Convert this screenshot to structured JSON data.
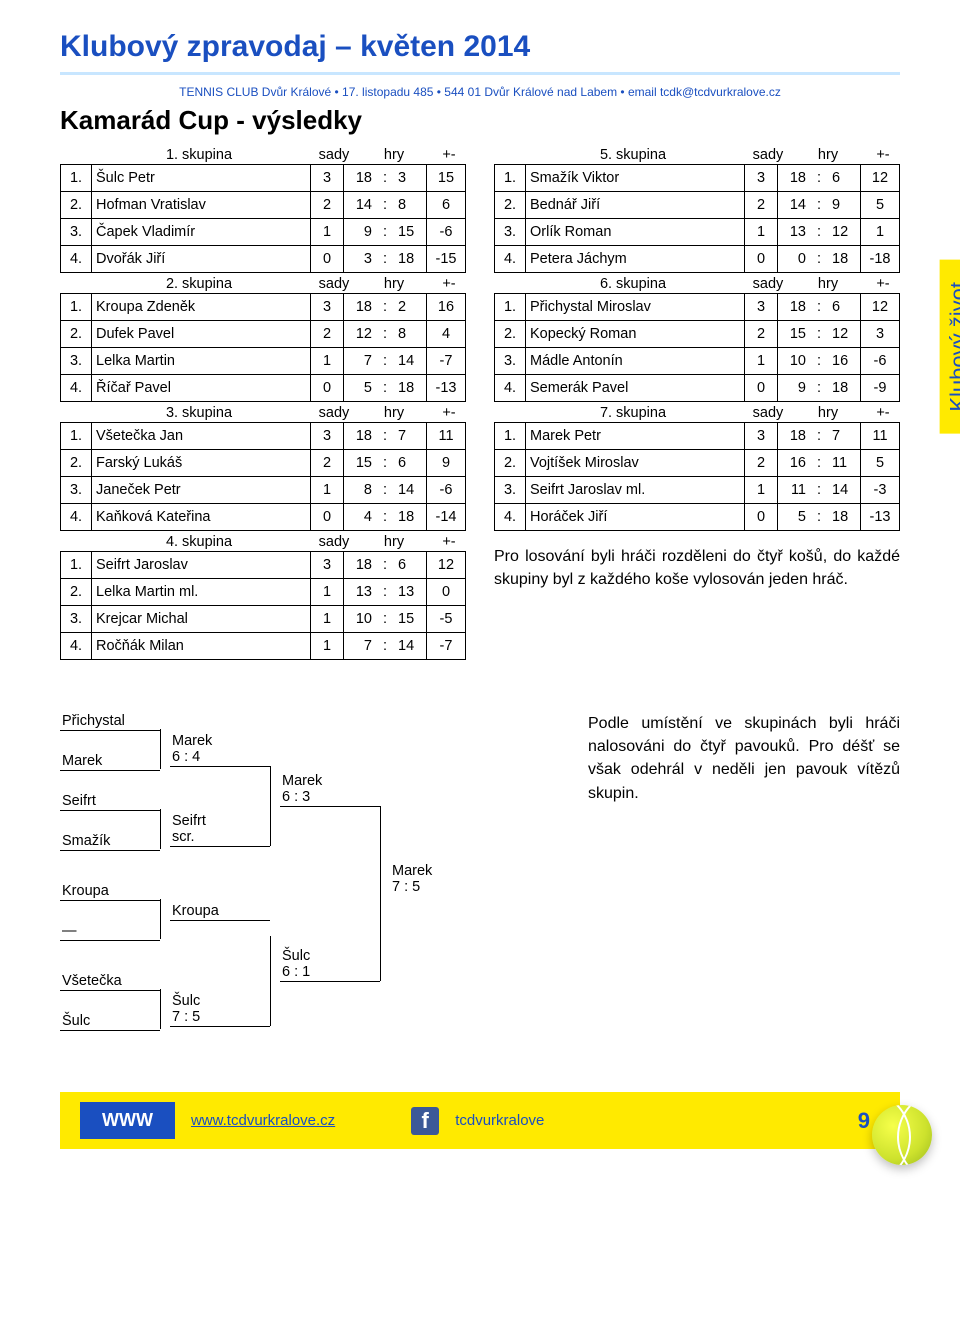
{
  "header": {
    "title": "Klubový zpravodaj – květen 2014",
    "subhead": "TENNIS CLUB Dvůr Králové • 17. listopadu 485 • 544 01 Dvůr Králové nad Labem • email tcdk@tcdvurkralove.cz"
  },
  "section_title": "Kamarád Cup - výsledky",
  "side_label": "Klubový život",
  "col_header": {
    "sady": "sady",
    "hry": "hry",
    "pm": "+-"
  },
  "groups_left": [
    {
      "name": "1. skupina",
      "rows": [
        {
          "pos": "1.",
          "name": "Šulc Petr",
          "sady": "3",
          "h1": "18",
          "h2": "3",
          "pm": "15"
        },
        {
          "pos": "2.",
          "name": "Hofman Vratislav",
          "sady": "2",
          "h1": "14",
          "h2": "8",
          "pm": "6"
        },
        {
          "pos": "3.",
          "name": "Čapek Vladimír",
          "sady": "1",
          "h1": "9",
          "h2": "15",
          "pm": "-6"
        },
        {
          "pos": "4.",
          "name": "Dvořák Jiří",
          "sady": "0",
          "h1": "3",
          "h2": "18",
          "pm": "-15"
        }
      ]
    },
    {
      "name": "2. skupina",
      "rows": [
        {
          "pos": "1.",
          "name": "Kroupa Zdeněk",
          "sady": "3",
          "h1": "18",
          "h2": "2",
          "pm": "16"
        },
        {
          "pos": "2.",
          "name": "Dufek Pavel",
          "sady": "2",
          "h1": "12",
          "h2": "8",
          "pm": "4"
        },
        {
          "pos": "3.",
          "name": "Lelka Martin",
          "sady": "1",
          "h1": "7",
          "h2": "14",
          "pm": "-7"
        },
        {
          "pos": "4.",
          "name": "Říčař Pavel",
          "sady": "0",
          "h1": "5",
          "h2": "18",
          "pm": "-13"
        }
      ]
    },
    {
      "name": "3. skupina",
      "rows": [
        {
          "pos": "1.",
          "name": "Všetečka Jan",
          "sady": "3",
          "h1": "18",
          "h2": "7",
          "pm": "11"
        },
        {
          "pos": "2.",
          "name": "Farský Lukáš",
          "sady": "2",
          "h1": "15",
          "h2": "6",
          "pm": "9"
        },
        {
          "pos": "3.",
          "name": "Janeček Petr",
          "sady": "1",
          "h1": "8",
          "h2": "14",
          "pm": "-6"
        },
        {
          "pos": "4.",
          "name": "Kaňková Kateřina",
          "sady": "0",
          "h1": "4",
          "h2": "18",
          "pm": "-14"
        }
      ]
    },
    {
      "name": "4. skupina",
      "rows": [
        {
          "pos": "1.",
          "name": "Seifrt Jaroslav",
          "sady": "3",
          "h1": "18",
          "h2": "6",
          "pm": "12"
        },
        {
          "pos": "2.",
          "name": "Lelka Martin ml.",
          "sady": "1",
          "h1": "13",
          "h2": "13",
          "pm": "0"
        },
        {
          "pos": "3.",
          "name": "Krejcar Michal",
          "sady": "1",
          "h1": "10",
          "h2": "15",
          "pm": "-5"
        },
        {
          "pos": "4.",
          "name": "Ročňák Milan",
          "sady": "1",
          "h1": "7",
          "h2": "14",
          "pm": "-7"
        }
      ]
    }
  ],
  "groups_right": [
    {
      "name": "5. skupina",
      "rows": [
        {
          "pos": "1.",
          "name": "Smažík Viktor",
          "sady": "3",
          "h1": "18",
          "h2": "6",
          "pm": "12"
        },
        {
          "pos": "2.",
          "name": "Bednář Jiří",
          "sady": "2",
          "h1": "14",
          "h2": "9",
          "pm": "5"
        },
        {
          "pos": "3.",
          "name": "Orlík Roman",
          "sady": "1",
          "h1": "13",
          "h2": "12",
          "pm": "1"
        },
        {
          "pos": "4.",
          "name": "Petera Jáchym",
          "sady": "0",
          "h1": "0",
          "h2": "18",
          "pm": "-18"
        }
      ]
    },
    {
      "name": "6. skupina",
      "rows": [
        {
          "pos": "1.",
          "name": "Přichystal Miroslav",
          "sady": "3",
          "h1": "18",
          "h2": "6",
          "pm": "12"
        },
        {
          "pos": "2.",
          "name": "Kopecký Roman",
          "sady": "2",
          "h1": "15",
          "h2": "12",
          "pm": "3"
        },
        {
          "pos": "3.",
          "name": "Mádle Antonín",
          "sady": "1",
          "h1": "10",
          "h2": "16",
          "pm": "-6"
        },
        {
          "pos": "4.",
          "name": "Semerák Pavel",
          "sady": "0",
          "h1": "9",
          "h2": "18",
          "pm": "-9"
        }
      ]
    },
    {
      "name": "7. skupina",
      "rows": [
        {
          "pos": "1.",
          "name": "Marek Petr",
          "sady": "3",
          "h1": "18",
          "h2": "7",
          "pm": "11"
        },
        {
          "pos": "2.",
          "name": "Vojtíšek Miroslav",
          "sady": "2",
          "h1": "16",
          "h2": "11",
          "pm": "5"
        },
        {
          "pos": "3.",
          "name": "Seifrt Jaroslav ml.",
          "sady": "1",
          "h1": "11",
          "h2": "14",
          "pm": "-3"
        },
        {
          "pos": "4.",
          "name": "Horáček Jiří",
          "sady": "0",
          "h1": "5",
          "h2": "18",
          "pm": "-13"
        }
      ]
    }
  ],
  "note1": "Pro losování byli hráči rozděleni do čtyř košů, do každé skupiny byl z každého koše vylosován jeden hráč.",
  "bracket": {
    "r1": [
      {
        "name": "Přichystal"
      },
      {
        "name": "Marek"
      },
      {
        "name": "Seifrt"
      },
      {
        "name": "Smažík"
      },
      {
        "name": "Kroupa"
      },
      {
        "name": "—"
      },
      {
        "name": "Všetečka"
      },
      {
        "name": "Šulc"
      }
    ],
    "r2": [
      {
        "name": "Marek",
        "score": "6 : 4"
      },
      {
        "name": "Seifrt",
        "score": "scr."
      },
      {
        "name": "Kroupa",
        "score": ""
      },
      {
        "name": "Šulc",
        "score": "7 : 5"
      }
    ],
    "r3": [
      {
        "name": "Marek",
        "score": "6 : 3"
      },
      {
        "name": "Šulc",
        "score": "6 : 1"
      }
    ],
    "r4": [
      {
        "name": "Marek",
        "score": "7 : 5"
      }
    ]
  },
  "note2": "Podle umístění ve skupinách byli hráči nalosováni do čtyř pavouků. Pro déšť se však odehrál v neděli jen pavouk vítězů skupin.",
  "footer": {
    "www_label": "WWW",
    "url": "www.tcdvurkralove.cz",
    "fb_text": "tcdvurkralove",
    "page_num": "9"
  }
}
